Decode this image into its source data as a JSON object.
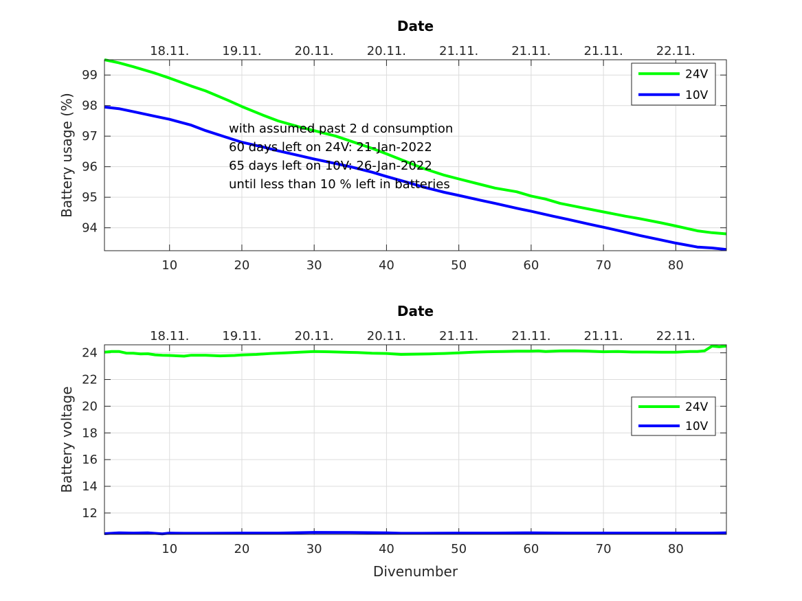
{
  "chart_data": [
    {
      "type": "line",
      "title": "Date",
      "xlabel": "",
      "ylabel": "Battery usage (%)",
      "xlim": [
        1,
        87
      ],
      "ylim": [
        93.25,
        99.5
      ],
      "x_ticks": [
        10,
        20,
        30,
        40,
        50,
        60,
        70,
        80
      ],
      "y_ticks": [
        94,
        95,
        96,
        97,
        98,
        99
      ],
      "top_ticks": [
        "18.11.",
        "19.11.",
        "20.11.",
        "20.11.",
        "21.11.",
        "21.11.",
        "21.11.",
        "22.11."
      ],
      "grid": true,
      "legend_location": "top-right",
      "annotation": [
        "with assumed past 2 d consumption",
        "60 days left on 24V: 21-Jan-2022",
        "65 days left on 10V: 26-Jan-2022",
        "until less than 10 % left in batteries"
      ],
      "annotation_x": 18.2,
      "series": [
        {
          "name": "24V",
          "color": "#00ff00",
          "x": [
            1,
            3,
            5,
            8,
            10,
            13,
            15,
            18,
            20,
            23,
            25,
            28,
            30,
            33,
            35,
            38,
            40,
            43,
            45,
            48,
            50,
            53,
            55,
            58,
            60,
            62,
            64,
            67,
            70,
            73,
            75,
            78,
            80,
            83,
            85,
            87
          ],
          "y": [
            99.5,
            99.4,
            99.27,
            99.06,
            98.9,
            98.64,
            98.48,
            98.18,
            97.97,
            97.68,
            97.5,
            97.3,
            97.18,
            97.0,
            96.84,
            96.6,
            96.42,
            96.14,
            95.95,
            95.72,
            95.6,
            95.42,
            95.3,
            95.18,
            95.04,
            94.94,
            94.8,
            94.66,
            94.52,
            94.38,
            94.3,
            94.16,
            94.06,
            93.9,
            93.84,
            93.8
          ]
        },
        {
          "name": "10V",
          "color": "#0000ff",
          "x": [
            1,
            3,
            5,
            8,
            10,
            13,
            15,
            18,
            20,
            23,
            25,
            28,
            30,
            33,
            35,
            38,
            40,
            43,
            45,
            48,
            50,
            53,
            55,
            58,
            60,
            63,
            65,
            68,
            70,
            73,
            75,
            78,
            80,
            83,
            85,
            87
          ],
          "y": [
            97.95,
            97.9,
            97.8,
            97.65,
            97.55,
            97.36,
            97.18,
            96.95,
            96.8,
            96.64,
            96.52,
            96.36,
            96.25,
            96.1,
            96.0,
            95.82,
            95.68,
            95.48,
            95.34,
            95.16,
            95.06,
            94.9,
            94.8,
            94.64,
            94.54,
            94.38,
            94.28,
            94.12,
            94.02,
            93.86,
            93.75,
            93.6,
            93.5,
            93.37,
            93.34,
            93.29
          ]
        }
      ]
    },
    {
      "type": "line",
      "title": "Date",
      "xlabel": "Divenumber",
      "ylabel": "Battery voltage",
      "xlim": [
        1,
        87
      ],
      "ylim": [
        10.4,
        24.6
      ],
      "x_ticks": [
        10,
        20,
        30,
        40,
        50,
        60,
        70,
        80
      ],
      "y_ticks": [
        12,
        14,
        16,
        18,
        20,
        22,
        24
      ],
      "top_ticks": [
        "18.11.",
        "19.11.",
        "20.11.",
        "20.11.",
        "21.11.",
        "21.11.",
        "21.11.",
        "22.11."
      ],
      "grid": true,
      "legend_location": "right",
      "series": [
        {
          "name": "24V",
          "color": "#00ff00",
          "x": [
            1,
            2,
            3,
            4,
            5,
            6,
            7,
            8,
            9,
            10,
            12,
            13,
            15,
            17,
            19,
            20,
            22,
            24,
            26,
            28,
            30,
            32,
            34,
            36,
            38,
            40,
            42,
            44,
            46,
            48,
            50,
            52,
            54,
            56,
            58,
            60,
            61,
            62,
            64,
            66,
            68,
            70,
            72,
            74,
            76,
            78,
            80,
            82,
            83,
            84,
            85,
            86,
            87
          ],
          "y": [
            24.05,
            24.1,
            24.1,
            23.98,
            23.97,
            23.92,
            23.93,
            23.85,
            23.82,
            23.8,
            23.75,
            23.82,
            23.82,
            23.77,
            23.8,
            23.84,
            23.88,
            23.95,
            24.0,
            24.05,
            24.1,
            24.08,
            24.05,
            24.02,
            23.97,
            23.95,
            23.88,
            23.9,
            23.92,
            23.95,
            24.0,
            24.05,
            24.08,
            24.1,
            24.12,
            24.12,
            24.14,
            24.1,
            24.14,
            24.15,
            24.12,
            24.08,
            24.1,
            24.06,
            24.06,
            24.05,
            24.05,
            24.1,
            24.1,
            24.15,
            24.5,
            24.45,
            24.5
          ]
        },
        {
          "name": "10V",
          "color": "#0000ff",
          "x": [
            1,
            3,
            5,
            7,
            9,
            10,
            12,
            15,
            20,
            25,
            30,
            35,
            40,
            42,
            45,
            50,
            55,
            60,
            65,
            70,
            75,
            80,
            85,
            87
          ],
          "y": [
            10.45,
            10.52,
            10.5,
            10.52,
            10.44,
            10.5,
            10.48,
            10.48,
            10.5,
            10.5,
            10.55,
            10.54,
            10.52,
            10.48,
            10.48,
            10.5,
            10.5,
            10.52,
            10.5,
            10.5,
            10.5,
            10.5,
            10.5,
            10.52
          ]
        }
      ]
    }
  ]
}
